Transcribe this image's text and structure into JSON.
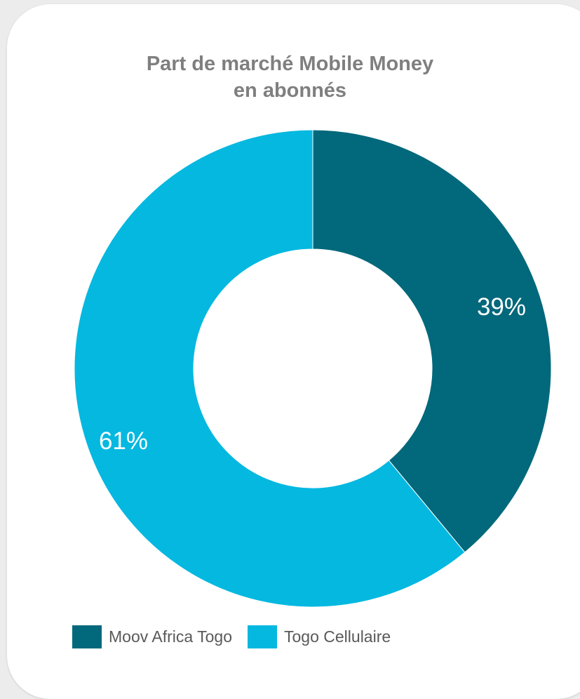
{
  "chart_data": {
    "type": "pie",
    "variant": "donut",
    "title": "Part de marché Mobile Money en abonnés",
    "title_lines": [
      "Part de marché Mobile Money",
      "en abonnés"
    ],
    "slices": [
      {
        "label": "Moov Africa Togo",
        "value": 39,
        "display": "39%",
        "color": "#02687b"
      },
      {
        "label": "Togo Cellulaire",
        "value": 61,
        "display": "61%",
        "color": "#05b8e0"
      }
    ],
    "legend_position": "bottom"
  }
}
